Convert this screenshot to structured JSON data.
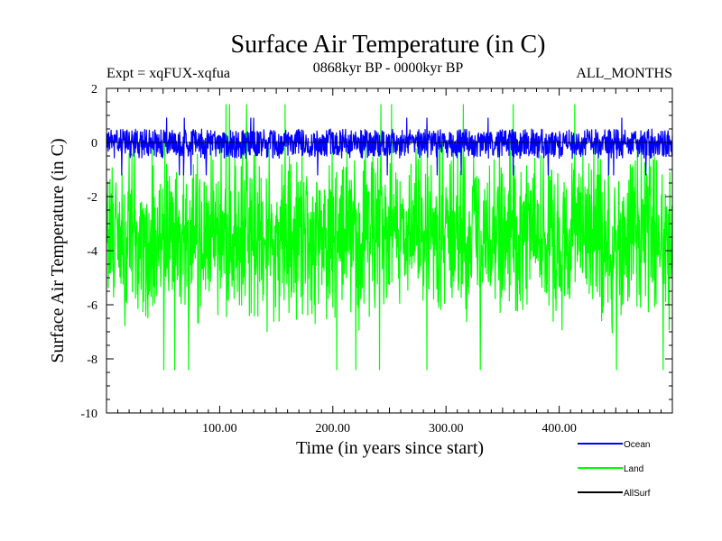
{
  "chart_data": {
    "type": "line",
    "title": "Surface Air Temperature (in C)",
    "subtitle": "0868kyr BP - 0000kyr BP",
    "experiment_label": "Expt = xqFUX-xqfua",
    "months_label": "ALL_MONTHS",
    "xlabel": "Time (in years since start)",
    "ylabel": "Surface Air Temperature (in C)",
    "xlim": [
      0,
      500
    ],
    "ylim": [
      -10,
      2
    ],
    "x_ticks": [
      100,
      200,
      300,
      400
    ],
    "x_tick_labels": [
      "100.00",
      "200.00",
      "300.00",
      "400.00"
    ],
    "y_ticks": [
      2,
      0,
      -2,
      -4,
      -6,
      -8,
      -10
    ],
    "y_tick_labels": [
      "2",
      "0",
      "-2",
      "-4",
      "-6",
      "-8",
      "-10"
    ],
    "series": [
      {
        "name": "Land",
        "color": "#00ff00",
        "description_values": {
          "mean": -3.5,
          "typical_min": -7.2,
          "typical_max": 0.4,
          "extreme_min": -8.4,
          "extreme_max": 1.4
        }
      },
      {
        "name": "Ocean",
        "color": "#0000ff",
        "description_values": {
          "mean": 0.0,
          "typical_min": -0.6,
          "typical_max": 0.5,
          "extreme_min": -1.2,
          "extreme_max": 0.9
        }
      },
      {
        "name": "AllSurf",
        "color": "#000000",
        "description_values": {
          "mean": 0.0
        }
      }
    ],
    "legend": {
      "placement": "bottom-right",
      "order": [
        "Ocean",
        "Land",
        "AllSurf"
      ]
    }
  }
}
